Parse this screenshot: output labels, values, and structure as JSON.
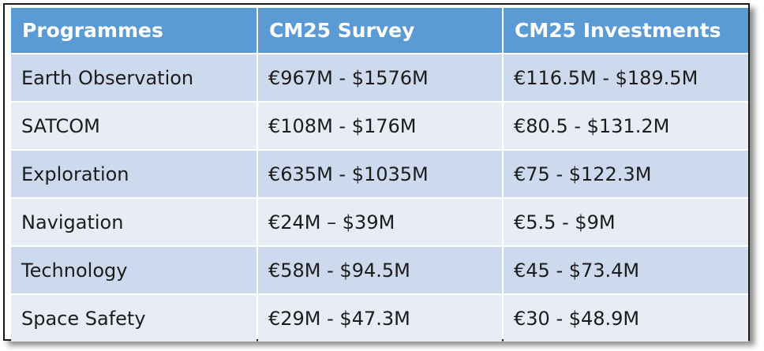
{
  "table": {
    "headers": [
      "Programmes",
      "CM25 Survey",
      "CM25 Investments"
    ],
    "rows": [
      [
        "Earth Observation",
        "€967M - $1576M",
        "€116.5M - $189.5M"
      ],
      [
        "SATCOM",
        "€108M - $176M",
        "€80.5 - $131.2M"
      ],
      [
        "Exploration",
        "€635M - $1035M",
        "€75 - $122.3M"
      ],
      [
        "Navigation",
        "€24M – $39M",
        "€5.5 - $9M"
      ],
      [
        "Technology",
        "€58M - $94.5M",
        "€45 - $73.4M"
      ],
      [
        "Space Safety",
        "€29M - $47.3M",
        "€30 - $48.9M"
      ]
    ]
  },
  "colors": {
    "header_bg": "#5b9bd5",
    "header_text": "#ffffff",
    "row_band_dark": "#cdd9ec",
    "row_band_light": "#e8ecf5",
    "cell_text": "#1c1c1c"
  }
}
